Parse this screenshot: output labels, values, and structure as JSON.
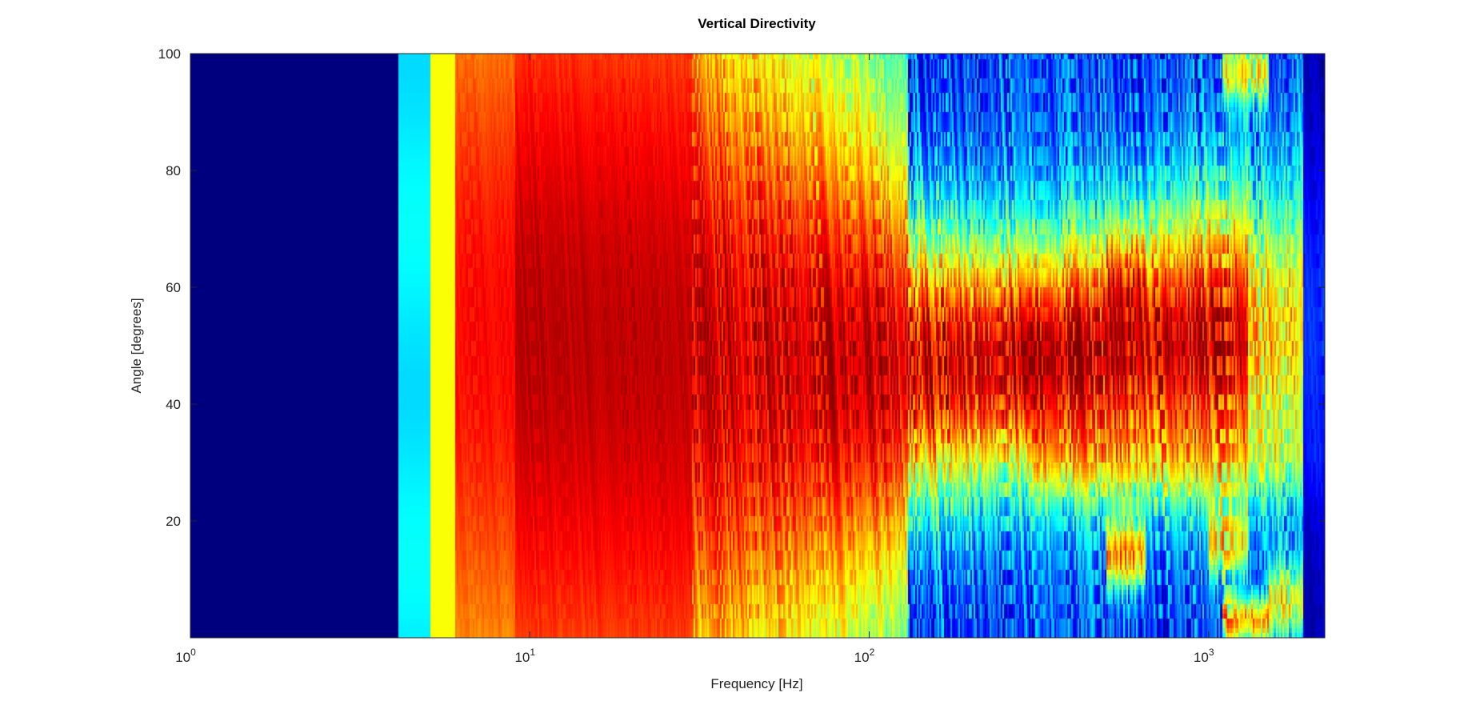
{
  "chart_data": {
    "type": "heatmap",
    "title": "Vertical Directivity",
    "xlabel": "Frequency [Hz]",
    "ylabel": "Angle [degrees]",
    "x_scale": "log",
    "xlim": [
      1,
      2200
    ],
    "ylim": [
      0,
      100
    ],
    "x_ticks": [
      {
        "value": 1,
        "base": "10",
        "exp": "0"
      },
      {
        "value": 10,
        "base": "10",
        "exp": "1"
      },
      {
        "value": 100,
        "base": "10",
        "exp": "2"
      },
      {
        "value": 1000,
        "base": "10",
        "exp": "3"
      }
    ],
    "y_ticks": [
      {
        "value": 20,
        "label": "20"
      },
      {
        "value": 40,
        "label": "40"
      },
      {
        "value": 60,
        "label": "60"
      },
      {
        "value": 80,
        "label": "80"
      },
      {
        "value": 100,
        "label": "100"
      }
    ],
    "colormap": "jet",
    "colormap_colors": [
      "#00007f",
      "#0000ff",
      "#007fff",
      "#00ffff",
      "#7fff7f",
      "#ffff00",
      "#ff7f00",
      "#ff0000",
      "#7f0000"
    ],
    "grid": false,
    "description": "Angle vs frequency directivity map: broad main lobe centered near 50 degrees that narrows with increasing frequency; uniform low level below ~4 Hz; fine-grained side lobes above ~300 Hz."
  }
}
